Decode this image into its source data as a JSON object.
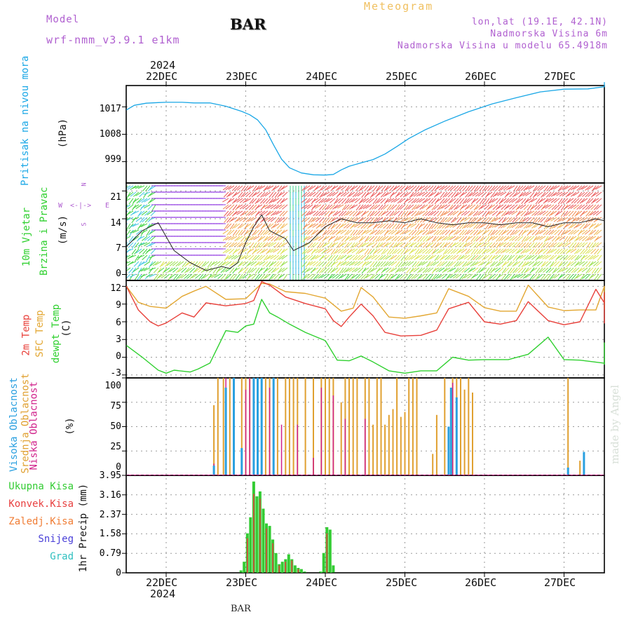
{
  "header": {
    "meteogram": "Meteogram",
    "model_label": "Model",
    "model_name": "wrf-nmm_v3.9.1  e1km",
    "station_title": "BAR",
    "lonlat": "lon,lat (19.1E, 42.1N)",
    "altitude": "Nadmorska Visina 6m",
    "model_altitude": "Nadmorska Visina u modelu 65.4918m",
    "footer_station": "BAR",
    "watermark": "made by Angel"
  },
  "colors": {
    "pressure": "#1aa7e6",
    "temp2m": "#e8403a",
    "sfc": "#e3a732",
    "dewpt": "#2fd02f",
    "cloud_high": "#2aa0e0",
    "cloud_mid": "#e0a030",
    "cloud_low": "#d0208a",
    "rain_total": "#33cc33",
    "rain_conv": "#e84040",
    "label_purple": "#b060d0"
  },
  "time_axis": {
    "year_top": "2024",
    "year_bottom": "2024",
    "days": [
      "22DEC",
      "23DEC",
      "24DEC",
      "25DEC",
      "26DEC",
      "27DEC"
    ]
  },
  "panels": {
    "pressure": {
      "title": "Pritisak na nivou mora",
      "unit": "(hPa)",
      "ticks": [
        "1017",
        "1008",
        "999"
      ]
    },
    "wind": {
      "title_line1": "10m Vjetar",
      "title_line2": "Brzina i Pravac",
      "unit": "(m/s)",
      "ticks": [
        "21",
        "14",
        "7",
        "0"
      ],
      "compass": {
        "n": "N",
        "w": "W",
        "e": "E",
        "s": "S"
      }
    },
    "temp": {
      "label_2m": "2m Temp",
      "label_sfc": "SFC Temp",
      "label_dew": "dewpt Temp",
      "unit": "(C)",
      "ticks": [
        "12",
        "9",
        "6",
        "3",
        "0",
        "-3"
      ]
    },
    "cloud": {
      "label_high": "Visoka Oblacnost",
      "label_mid": "Srednja Oblacnost",
      "label_low": "Niska Oblacnost",
      "unit": "(%)",
      "ticks": [
        "100",
        "75",
        "50",
        "25",
        "0"
      ]
    },
    "precip": {
      "axis_label": "1hr Precip (mm)",
      "ticks": [
        "3.95",
        "3.16",
        "2.37",
        "1.58",
        "0.79",
        "0"
      ],
      "legend": [
        "Ukupna Kisa",
        "Konvek.Kisa",
        "Zaledj.Kisa",
        "Snijeg",
        "Grad"
      ]
    }
  },
  "chart_data": [
    {
      "type": "line",
      "title": "Pritisak na nivou mora",
      "ylabel": "(hPa)",
      "ylim": [
        992,
        1024
      ],
      "x_unit": "days since 22DEC 00h",
      "series": [
        {
          "name": "Pritisak na nivou mora",
          "x": [
            -0.5,
            -0.4,
            -0.25,
            -0.1,
            0,
            0.2,
            0.35,
            0.55,
            0.75,
            0.95,
            1.05,
            1.15,
            1.25,
            1.35,
            1.45,
            1.55,
            1.7,
            1.85,
            2.0,
            2.1,
            2.2,
            2.3,
            2.45,
            2.6,
            2.75,
            2.9,
            3.05,
            3.25,
            3.5,
            3.8,
            4.1,
            4.4,
            4.7,
            5.0,
            5.3,
            5.55,
            5.8,
            6.0,
            6.1
          ],
          "values": [
            1016,
            1017.5,
            1018.2,
            1018.4,
            1018.5,
            1018.5,
            1018.3,
            1018.3,
            1017.2,
            1015.5,
            1014.4,
            1012.7,
            1009.5,
            1004.5,
            999.8,
            997,
            995.3,
            994.7,
            994.6,
            994.8,
            996.3,
            997.5,
            998.6,
            999.7,
            1001.5,
            1004.0,
            1006.6,
            1009.4,
            1012.3,
            1015.4,
            1018.0,
            1020.0,
            1021.9,
            1022.8,
            1022.9,
            1023.6,
            1024.1,
            1025.0,
            1024.6
          ]
        }
      ]
    },
    {
      "type": "line",
      "title": "10m Vjetar Brzina i Pravac",
      "ylabel": "(m/s)",
      "ylim": [
        -1.5,
        23
      ],
      "x_unit": "days since 22DEC 00h",
      "series": [
        {
          "name": "10m Vjetar",
          "x": [
            -0.5,
            -0.3,
            -0.1,
            0.1,
            0.3,
            0.5,
            0.7,
            0.8,
            0.9,
            1.0,
            1.1,
            1.2,
            1.3,
            1.4,
            1.5,
            1.6,
            1.8,
            2.0,
            2.2,
            2.4,
            2.6,
            2.8,
            3.0,
            3.2,
            3.4,
            3.6,
            3.8,
            4.0,
            4.2,
            4.4,
            4.6,
            4.8,
            5.0,
            5.2,
            5.4,
            5.6,
            5.8,
            6.0,
            6.1
          ],
          "values": [
            7,
            11,
            13,
            6,
            3,
            1,
            2,
            1.5,
            3,
            8,
            12,
            15,
            11,
            10,
            9,
            6,
            8,
            12,
            14,
            13,
            13,
            13.5,
            13,
            14,
            13,
            12.5,
            13,
            13,
            12.5,
            13,
            13,
            12,
            13,
            13,
            14,
            13.5,
            14,
            9,
            8
          ]
        }
      ]
    },
    {
      "type": "line",
      "title": "2m Temp / SFC Temp / dewpt Temp",
      "ylabel": "(C)",
      "ylim": [
        -3.5,
        13
      ],
      "x_unit": "days since 22DEC 00h",
      "series": [
        {
          "name": "2m Temp",
          "x": [
            -0.5,
            -0.35,
            -0.2,
            -0.1,
            0,
            0.2,
            0.35,
            0.5,
            0.75,
            1.0,
            1.1,
            1.2,
            1.3,
            1.5,
            1.75,
            2.0,
            2.1,
            2.2,
            2.3,
            2.45,
            2.6,
            2.75,
            2.95,
            3.2,
            3.4,
            3.55,
            3.8,
            4.0,
            4.2,
            4.4,
            4.55,
            4.8,
            5.0,
            5.2,
            5.4,
            5.55,
            5.8,
            6.0,
            6.1
          ],
          "values": [
            12,
            8,
            6,
            5.3,
            5.8,
            7.5,
            6.8,
            9.2,
            8.7,
            9.1,
            9.6,
            12.8,
            12.2,
            10.2,
            9.1,
            8.2,
            6.2,
            5.2,
            6.8,
            9,
            7,
            4.2,
            3.6,
            3.7,
            4.6,
            8.2,
            9.3,
            6,
            5.6,
            6.2,
            9.4,
            6.2,
            5.5,
            6,
            11.5,
            9.2,
            5.8,
            6.6,
            11
          ]
        },
        {
          "name": "SFC Temp",
          "x": [
            -0.5,
            -0.35,
            -0.2,
            0,
            0.2,
            0.35,
            0.5,
            0.75,
            1.0,
            1.2,
            1.3,
            1.5,
            1.75,
            2.0,
            2.2,
            2.35,
            2.45,
            2.6,
            2.8,
            3.0,
            3.2,
            3.4,
            3.55,
            3.8,
            4.0,
            4.2,
            4.4,
            4.55,
            4.8,
            5.0,
            5.2,
            5.4,
            5.55,
            5.8,
            6.0,
            6.1
          ],
          "values": [
            12,
            9.3,
            8.6,
            8.3,
            10.3,
            11.2,
            12,
            9.8,
            9.9,
            12.5,
            12.4,
            11.1,
            10.8,
            10,
            7.8,
            8.3,
            11.8,
            10.2,
            6.8,
            6.6,
            7.0,
            7.5,
            11.6,
            10.3,
            8.4,
            7.8,
            7.8,
            12.2,
            8.5,
            7.9,
            8.0,
            8.0,
            12.0,
            8.6,
            8.1,
            12.0
          ]
        },
        {
          "name": "dewpt Temp",
          "x": [
            -0.5,
            -0.3,
            -0.1,
            0,
            0.1,
            0.3,
            0.4,
            0.55,
            0.75,
            0.9,
            1.0,
            1.1,
            1.2,
            1.3,
            1.4,
            1.55,
            1.75,
            2.0,
            2.15,
            2.3,
            2.45,
            2.6,
            2.8,
            3.0,
            3.2,
            3.4,
            3.6,
            3.8,
            4.0,
            4.3,
            4.55,
            4.8,
            5.0,
            5.2,
            5.5,
            5.7,
            5.9,
            6.0,
            6.1
          ],
          "values": [
            2,
            0,
            -2.2,
            -2.7,
            -2.2,
            -2.5,
            -2,
            -1,
            4.5,
            4.2,
            5.3,
            5.6,
            9.8,
            7.5,
            6.8,
            5.6,
            4.2,
            2.8,
            -0.5,
            -0.6,
            0.2,
            -0.8,
            -2.3,
            -2.7,
            -2.3,
            -2.3,
            0,
            -0.5,
            -0.4,
            -0.4,
            0.5,
            3.4,
            -0.4,
            -0.5,
            -1.0,
            -1.2,
            -0.5,
            1.5,
            2.5
          ]
        }
      ]
    },
    {
      "type": "bar",
      "title": "Visoka / Srednja / Niska Oblacnost",
      "ylabel": "(%)",
      "ylim": [
        0,
        100
      ],
      "x_unit": "days since 22DEC 00h",
      "series": [
        {
          "name": "Visoka Oblacnost",
          "x": [
            0.6,
            0.75,
            0.85,
            0.95,
            1.1,
            1.15,
            1.2,
            1.35,
            1.5,
            1.65,
            1.95,
            2.45,
            2.8,
            3.4,
            3.55,
            3.58,
            3.65,
            5.05,
            5.25
          ],
          "values": [
            10,
            90,
            100,
            28,
            100,
            100,
            100,
            100,
            0,
            0,
            0,
            0,
            0,
            0,
            50,
            90,
            80,
            8,
            24
          ]
        },
        {
          "name": "Srednja Oblacnost",
          "x": [
            0.6,
            0.65,
            0.72,
            0.8,
            0.85,
            0.95,
            1.0,
            1.05,
            1.1,
            1.15,
            1.25,
            1.3,
            1.35,
            1.4,
            1.5,
            1.55,
            1.6,
            1.65,
            1.75,
            1.85,
            1.95,
            2.0,
            2.05,
            2.1,
            2.2,
            2.25,
            2.3,
            2.35,
            2.4,
            2.5,
            2.55,
            2.6,
            2.65,
            2.7,
            2.75,
            2.8,
            2.85,
            2.9,
            2.95,
            3.0,
            3.05,
            3.1,
            3.15,
            3.35,
            3.4,
            3.5,
            3.6,
            3.65,
            3.7,
            3.75,
            3.8,
            3.85,
            5.05,
            5.2
          ],
          "values": [
            72,
            100,
            100,
            100,
            100,
            100,
            100,
            100,
            100,
            100,
            100,
            100,
            100,
            100,
            100,
            100,
            100,
            100,
            100,
            100,
            100,
            100,
            100,
            100,
            75,
            100,
            100,
            100,
            100,
            100,
            100,
            52,
            100,
            100,
            52,
            62,
            68,
            100,
            60,
            65,
            100,
            100,
            100,
            22,
            62,
            100,
            100,
            100,
            100,
            88,
            100,
            85,
            100,
            15
          ]
        },
        {
          "name": "Niska Oblacnost",
          "x": [
            0.6,
            0.75,
            0.85,
            1.0,
            1.05,
            1.15,
            1.2,
            1.3,
            1.45,
            1.65,
            1.85,
            1.95,
            2.1,
            2.25,
            2.5,
            3.6,
            3.65
          ],
          "values": [
            12,
            100,
            90,
            88,
            100,
            100,
            100,
            90,
            52,
            52,
            18,
            90,
            82,
            58,
            58,
            95,
            20
          ]
        }
      ]
    },
    {
      "type": "bar",
      "title": "1hr Precip",
      "ylabel": "1hr Precip (mm)",
      "ylim": [
        0,
        3.95
      ],
      "x_unit": "days since 22DEC 00h",
      "series": [
        {
          "name": "Ukupna Kisa",
          "x": [
            0.94,
            0.98,
            1.02,
            1.06,
            1.1,
            1.14,
            1.18,
            1.22,
            1.26,
            1.3,
            1.34,
            1.38,
            1.42,
            1.46,
            1.5,
            1.54,
            1.58,
            1.62,
            1.66,
            1.7,
            1.74,
            1.78,
            1.82,
            1.86,
            1.9,
            1.94,
            1.98,
            2.02,
            2.06,
            2.1
          ],
          "values": [
            0.1,
            0.45,
            1.6,
            2.25,
            3.7,
            3.1,
            3.3,
            2.6,
            2.0,
            1.9,
            1.35,
            0.8,
            0.35,
            0.45,
            0.55,
            0.75,
            0.55,
            0.3,
            0.2,
            0.15,
            0.05,
            0,
            0,
            0,
            0,
            0.05,
            0.8,
            1.85,
            1.75,
            0.3
          ]
        },
        {
          "name": "Konvek.Kisa",
          "x": [
            1.02,
            1.1,
            1.18,
            1.26,
            1.34,
            1.42,
            1.5,
            1.58,
            1.66,
            2.02
          ],
          "values": [
            1.4,
            3.2,
            3.0,
            1.8,
            1.2,
            0.3,
            0.45,
            0.5,
            0.15,
            1.6
          ]
        }
      ]
    }
  ]
}
